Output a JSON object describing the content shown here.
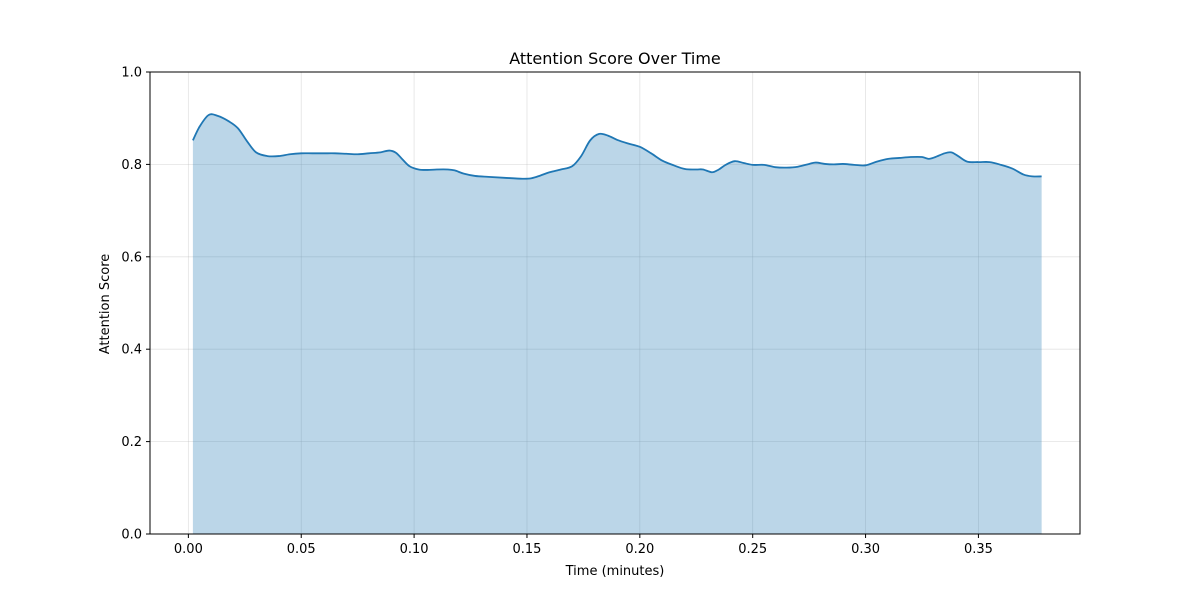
{
  "chart_data": {
    "type": "area",
    "title": "Attention Score Over Time",
    "xlabel": "Time (minutes)",
    "ylabel": "Attention Score",
    "xlim": [
      -0.017,
      0.395
    ],
    "ylim": [
      0.0,
      1.0
    ],
    "x_ticks": [
      0.0,
      0.05,
      0.1,
      0.15,
      0.2,
      0.25,
      0.3,
      0.35
    ],
    "x_tick_labels": [
      "0.00",
      "0.05",
      "0.10",
      "0.15",
      "0.20",
      "0.25",
      "0.30",
      "0.35"
    ],
    "y_ticks": [
      0.0,
      0.2,
      0.4,
      0.6,
      0.8,
      1.0
    ],
    "y_tick_labels": [
      "0.0",
      "0.2",
      "0.4",
      "0.6",
      "0.8",
      "1.0"
    ],
    "grid": true,
    "line_color": "#1f77b4",
    "fill_color": "#1f77b4",
    "x": [
      0.002,
      0.005,
      0.009,
      0.013,
      0.018,
      0.022,
      0.026,
      0.03,
      0.035,
      0.04,
      0.045,
      0.05,
      0.055,
      0.06,
      0.065,
      0.07,
      0.075,
      0.08,
      0.085,
      0.089,
      0.092,
      0.095,
      0.098,
      0.102,
      0.106,
      0.11,
      0.115,
      0.118,
      0.122,
      0.127,
      0.133,
      0.14,
      0.148,
      0.152,
      0.156,
      0.16,
      0.165,
      0.17,
      0.174,
      0.178,
      0.182,
      0.186,
      0.19,
      0.195,
      0.2,
      0.205,
      0.21,
      0.215,
      0.22,
      0.225,
      0.228,
      0.232,
      0.235,
      0.238,
      0.242,
      0.246,
      0.25,
      0.255,
      0.26,
      0.265,
      0.27,
      0.275,
      0.278,
      0.282,
      0.286,
      0.29,
      0.295,
      0.3,
      0.305,
      0.31,
      0.315,
      0.32,
      0.325,
      0.328,
      0.331,
      0.335,
      0.338,
      0.341,
      0.345,
      0.35,
      0.355,
      0.36,
      0.365,
      0.37,
      0.374,
      0.378
    ],
    "y": [
      0.852,
      0.882,
      0.907,
      0.905,
      0.893,
      0.878,
      0.85,
      0.826,
      0.818,
      0.818,
      0.822,
      0.824,
      0.824,
      0.824,
      0.824,
      0.823,
      0.822,
      0.824,
      0.826,
      0.83,
      0.825,
      0.81,
      0.796,
      0.789,
      0.788,
      0.789,
      0.789,
      0.787,
      0.78,
      0.775,
      0.773,
      0.771,
      0.769,
      0.77,
      0.776,
      0.783,
      0.789,
      0.796,
      0.818,
      0.852,
      0.866,
      0.862,
      0.853,
      0.845,
      0.838,
      0.824,
      0.808,
      0.798,
      0.79,
      0.789,
      0.789,
      0.783,
      0.789,
      0.799,
      0.807,
      0.803,
      0.799,
      0.799,
      0.794,
      0.793,
      0.795,
      0.801,
      0.804,
      0.801,
      0.8,
      0.801,
      0.799,
      0.798,
      0.806,
      0.812,
      0.814,
      0.816,
      0.816,
      0.812,
      0.816,
      0.824,
      0.826,
      0.818,
      0.806,
      0.805,
      0.805,
      0.799,
      0.791,
      0.778,
      0.774,
      0.774
    ]
  }
}
